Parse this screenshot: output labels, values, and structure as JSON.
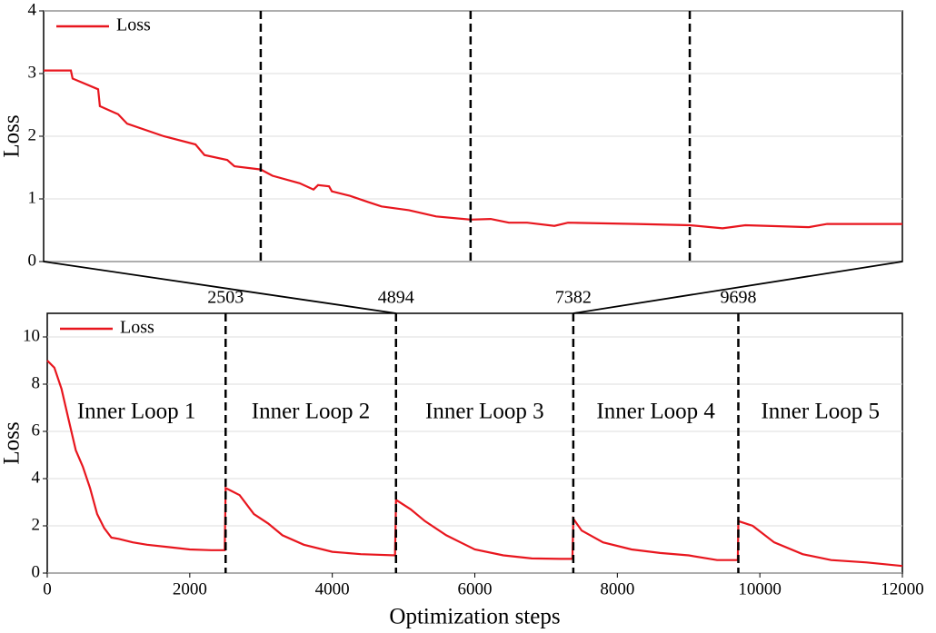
{
  "chart_data": [
    {
      "type": "line",
      "ylabel": "Loss",
      "xlim": [
        4894,
        7382
      ],
      "ylim": [
        0,
        4
      ],
      "yticks": [
        0,
        1,
        2,
        3,
        4
      ],
      "vlines": [
        5523,
        6131,
        6766
      ],
      "label_vlines": false,
      "legend": "upper left",
      "series": [
        {
          "name": "Loss",
          "color": "#e8161e",
          "x": [
            4894,
            4973,
            4978,
            5052,
            5057,
            5110,
            5136,
            5242,
            5334,
            5360,
            5426,
            5447,
            5523,
            5557,
            5636,
            5676,
            5689,
            5721,
            5729,
            5781,
            5834,
            5873,
            5952,
            6031,
            6131,
            6189,
            6242,
            6295,
            6374,
            6413,
            6611,
            6766,
            6861,
            6927,
            7111,
            7164,
            7382
          ],
          "values": [
            3.05,
            3.05,
            2.92,
            2.75,
            2.48,
            2.35,
            2.2,
            2.0,
            1.87,
            1.7,
            1.62,
            1.52,
            1.47,
            1.37,
            1.25,
            1.15,
            1.22,
            1.2,
            1.12,
            1.05,
            0.95,
            0.88,
            0.82,
            0.72,
            0.67,
            0.68,
            0.62,
            0.62,
            0.57,
            0.62,
            0.6,
            0.58,
            0.53,
            0.58,
            0.55,
            0.6,
            0.6
          ]
        }
      ]
    },
    {
      "type": "line",
      "xlabel": "Optimization steps",
      "ylabel": "Loss",
      "xlim": [
        0,
        12000
      ],
      "xticks": [
        0,
        2000,
        4000,
        6000,
        8000,
        10000,
        12000
      ],
      "ylim": [
        0,
        11
      ],
      "yticks": [
        0,
        2,
        4,
        6,
        8,
        10
      ],
      "vlines": [
        2503,
        4894,
        7382,
        9698
      ],
      "label_vlines": true,
      "legend": "upper left",
      "annotations": [
        "Inner Loop 1",
        "Inner Loop 2",
        "Inner Loop 3",
        "Inner Loop 4",
        "Inner Loop 5"
      ],
      "series": [
        {
          "name": "Loss",
          "color": "#e8161e",
          "x": [
            0,
            100,
            200,
            300,
            400,
            500,
            600,
            700,
            800,
            900,
            1000,
            1200,
            1400,
            1700,
            2000,
            2300,
            2490,
            2503,
            2700,
            2900,
            3100,
            3300,
            3600,
            4000,
            4400,
            4880,
            4894,
            5100,
            5300,
            5600,
            6000,
            6400,
            6800,
            7200,
            7370,
            7382,
            7500,
            7800,
            8200,
            8600,
            9000,
            9400,
            9690,
            9698,
            9900,
            10200,
            10600,
            11000,
            11500,
            12000
          ],
          "values": [
            9.0,
            8.7,
            7.8,
            6.5,
            5.2,
            4.5,
            3.6,
            2.5,
            1.9,
            1.5,
            1.45,
            1.3,
            1.2,
            1.1,
            1.0,
            0.97,
            0.97,
            3.6,
            3.3,
            2.5,
            2.1,
            1.6,
            1.2,
            0.9,
            0.8,
            0.75,
            3.1,
            2.7,
            2.2,
            1.6,
            1.0,
            0.75,
            0.62,
            0.6,
            0.6,
            2.3,
            1.8,
            1.3,
            1.0,
            0.85,
            0.75,
            0.55,
            0.55,
            2.2,
            2.0,
            1.3,
            0.8,
            0.55,
            0.45,
            0.3
          ]
        }
      ]
    }
  ]
}
